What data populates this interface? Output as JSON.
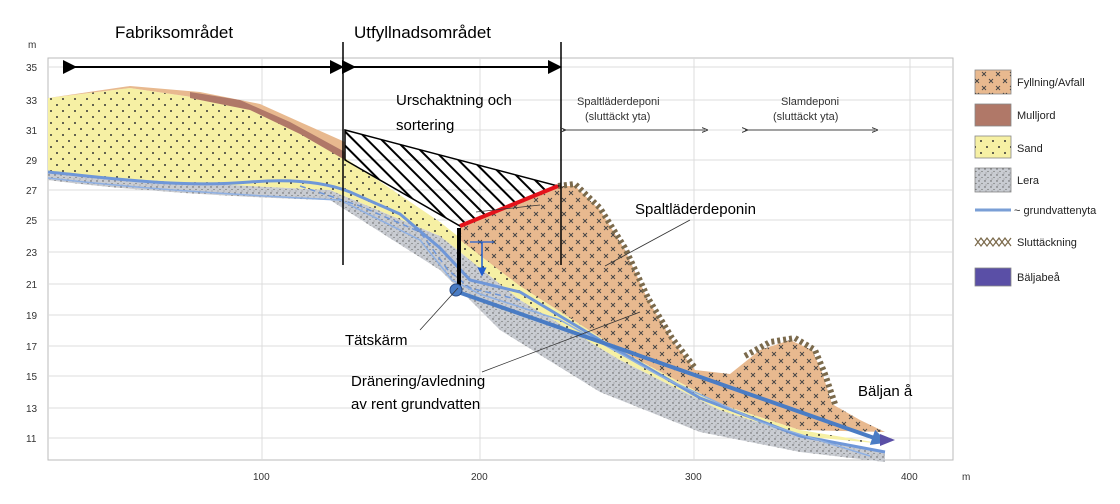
{
  "header": {
    "zone_left": "Fabriksområdet",
    "zone_right": "Utfyllnadsområdet"
  },
  "axis": {
    "y_unit": "m",
    "x_unit": "m",
    "y_ticks": [
      "35",
      "33",
      "31",
      "29",
      "27",
      "25",
      "23",
      "21",
      "19",
      "17",
      "15",
      "13",
      "11"
    ],
    "x_ticks": [
      "100",
      "200",
      "300",
      "400"
    ]
  },
  "annotations": {
    "excavation_line1": "Urschaktning och",
    "excavation_line2": "sortering",
    "spaltlader_area_line1": "Spaltläderdeponi",
    "spaltlader_area_line2": "(sluttäckt yta)",
    "slam_area_line1": "Slamdeponi",
    "slam_area_line2": "(sluttäckt yta)",
    "spaltladerdeponin": "Spaltläderdeponin",
    "tatskarm": "Tätskärm",
    "dranering_line1": "Dränering/avledning",
    "dranering_line2": "av rent grundvatten",
    "baljan": "Bäljan å"
  },
  "legend": {
    "items": [
      {
        "name": "fyllning",
        "label": "Fyllning/Avfall",
        "color": "#e8b98f"
      },
      {
        "name": "mulljord",
        "label": "Mulljord",
        "color": "#b07868"
      },
      {
        "name": "sand",
        "label": "Sand",
        "color": "#f6f0a4"
      },
      {
        "name": "lera",
        "label": "Lera",
        "color": "#c9ccd2"
      },
      {
        "name": "grundvatten",
        "label": "~ grundvattenyta",
        "color": "#7a9fd6"
      },
      {
        "name": "sluttackning",
        "label": "Sluttäckning",
        "color": "#7b6a4c"
      },
      {
        "name": "baljabea",
        "label": "Bäljabeå",
        "color": "#5a4fa6"
      }
    ]
  },
  "colors": {
    "fill": "#e8b98f",
    "sand": "#f6f0a4",
    "mulljord": "#b07868",
    "lera": "#c9ccd2",
    "groundwater": "#6f97d8",
    "drain_arrow": "#4a7cc4",
    "seal_red": "#e3131b"
  }
}
